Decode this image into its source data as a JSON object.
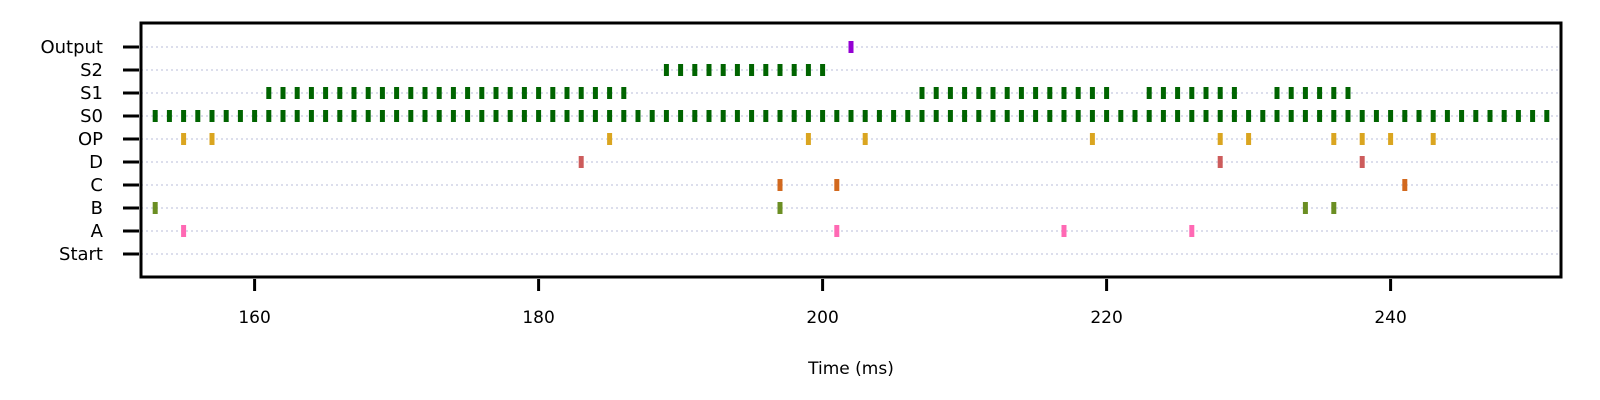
{
  "chart_data": {
    "type": "scatter",
    "title": "",
    "xlabel": "Time (ms)",
    "ylabel": "",
    "xlim": [
      152,
      252
    ],
    "x_ticks": [
      160,
      180,
      200,
      220,
      240
    ],
    "x_tick_labels": [
      "160",
      "180",
      "200",
      "220",
      "240"
    ],
    "categories": [
      "Start",
      "A",
      "B",
      "C",
      "D",
      "OP",
      "S0",
      "S1",
      "S2",
      "Output"
    ],
    "grid": true,
    "colors": {
      "Output": "#9400d3",
      "S2": "#006400",
      "S1": "#006400",
      "S0": "#006400",
      "OP": "#daa520",
      "D": "#cd5c5c",
      "C": "#d2691e",
      "B": "#6b8e23",
      "A": "#ff69b4",
      "Start": "#000000"
    },
    "series": [
      {
        "category": "Output",
        "x": [
          202
        ]
      },
      {
        "category": "S2",
        "x": [
          189,
          190,
          191,
          192,
          193,
          194,
          195,
          196,
          197,
          198,
          199,
          200
        ]
      },
      {
        "category": "S1",
        "x": [
          161,
          162,
          163,
          164,
          165,
          166,
          167,
          168,
          169,
          170,
          171,
          172,
          173,
          174,
          175,
          176,
          177,
          178,
          179,
          180,
          181,
          182,
          183,
          184,
          185,
          186,
          207,
          208,
          209,
          210,
          211,
          212,
          213,
          214,
          215,
          216,
          217,
          218,
          219,
          220,
          223,
          224,
          225,
          226,
          227,
          228,
          229,
          232,
          233,
          234,
          235,
          236,
          237
        ]
      },
      {
        "category": "S0",
        "x": [
          153,
          154,
          155,
          156,
          157,
          158,
          159,
          160,
          161,
          162,
          163,
          164,
          165,
          166,
          167,
          168,
          169,
          170,
          171,
          172,
          173,
          174,
          175,
          176,
          177,
          178,
          179,
          180,
          181,
          182,
          183,
          184,
          185,
          186,
          187,
          188,
          189,
          190,
          191,
          192,
          193,
          194,
          195,
          196,
          197,
          198,
          199,
          200,
          201,
          202,
          203,
          204,
          205,
          206,
          207,
          208,
          209,
          210,
          211,
          212,
          213,
          214,
          215,
          216,
          217,
          218,
          219,
          220,
          221,
          222,
          223,
          224,
          225,
          226,
          227,
          228,
          229,
          230,
          231,
          232,
          233,
          234,
          235,
          236,
          237,
          238,
          239,
          240,
          241,
          242,
          243,
          244,
          245,
          246,
          247,
          248,
          249,
          250,
          251
        ]
      },
      {
        "category": "OP",
        "x": [
          155,
          157,
          185,
          199,
          203,
          219,
          228,
          230,
          236,
          238,
          240,
          243
        ]
      },
      {
        "category": "D",
        "x": [
          183,
          228,
          238
        ]
      },
      {
        "category": "C",
        "x": [
          197,
          201,
          241
        ]
      },
      {
        "category": "B",
        "x": [
          153,
          197,
          234,
          236
        ]
      },
      {
        "category": "A",
        "x": [
          155,
          201,
          217,
          226
        ]
      },
      {
        "category": "Start",
        "x": []
      }
    ]
  }
}
